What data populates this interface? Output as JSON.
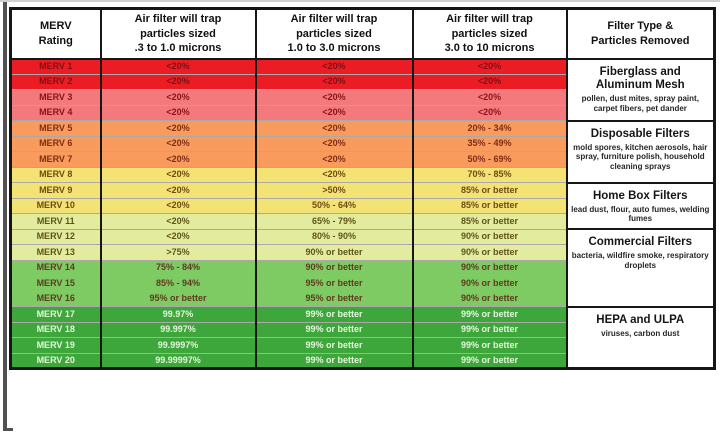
{
  "frame": {
    "background": "#ffffff",
    "top_line_color": "#d0d0d0",
    "left_line_color": "#515151",
    "table_border_color": "#161616"
  },
  "chart_data": {
    "type": "table",
    "columns": [
      "MERV\nRating",
      "Air filter will trap\nparticles sized\n.3 to 1.0 microns",
      "Air filter will trap\nparticles sized\n1.0 to 3.0 microns",
      "Air filter will trap\nparticles sized\n3.0 to 10 microns",
      "Filter Type &\nParticles Removed"
    ],
    "rows": [
      [
        "MERV 1",
        "<20%",
        "<20%",
        "<20%"
      ],
      [
        "MERV 2",
        "<20%",
        "<20%",
        "<20%"
      ],
      [
        "MERV 3",
        "<20%",
        "<20%",
        "<20%"
      ],
      [
        "MERV 4",
        "<20%",
        "<20%",
        "<20%"
      ],
      [
        "MERV 5",
        "<20%",
        "<20%",
        "20% - 34%"
      ],
      [
        "MERV 6",
        "<20%",
        "<20%",
        "35% - 49%"
      ],
      [
        "MERV 7",
        "<20%",
        "<20%",
        "50% - 69%"
      ],
      [
        "MERV 8",
        "<20%",
        "<20%",
        "70% - 85%"
      ],
      [
        "MERV 9",
        "<20%",
        ">50%",
        "85% or better"
      ],
      [
        "MERV 10",
        "<20%",
        "50% - 64%",
        "85% or better"
      ],
      [
        "MERV 11",
        "<20%",
        "65% - 79%",
        "85% or better"
      ],
      [
        "MERV 12",
        "<20%",
        "80% - 90%",
        "90% or better"
      ],
      [
        "MERV 13",
        ">75%",
        "90% or better",
        "90% or better"
      ],
      [
        "MERV 14",
        "75% - 84%",
        "90% or better",
        "90% or better"
      ],
      [
        "MERV 15",
        "85% - 94%",
        "95% or better",
        "90% or better"
      ],
      [
        "MERV 16",
        "95% or better",
        "95% or better",
        "90% or better"
      ],
      [
        "MERV 17",
        "99.97%",
        "99% or better",
        "99% or better"
      ],
      [
        "MERV 18",
        "99.997%",
        "99% or better",
        "99% or better"
      ],
      [
        "MERV 19",
        "99.9997%",
        "99% or better",
        "99% or better"
      ],
      [
        "MERV 20",
        "99.99997%",
        "99% or better",
        "99% or better"
      ]
    ],
    "row_bands": [
      "red",
      "red",
      "salmon",
      "salmon",
      "orange",
      "orange",
      "orange",
      "yellow",
      "yellow",
      "yellow",
      "lime",
      "lime",
      "lime",
      "green",
      "green",
      "green",
      "dgreen",
      "dgreen",
      "dgreen",
      "dgreen"
    ],
    "bands": {
      "red": {
        "bg": "#EC1C24",
        "fg": "#7D1116"
      },
      "salmon": {
        "bg": "#F4797D",
        "fg": "#871418"
      },
      "orange": {
        "bg": "#F89B5D",
        "fg": "#7F2D15"
      },
      "yellow": {
        "bg": "#F3E274",
        "fg": "#6F4B13"
      },
      "lime": {
        "bg": "#E3EB9E",
        "fg": "#5E5518"
      },
      "green": {
        "bg": "#7ECB63",
        "fg": "#5F3A20"
      },
      "dgreen": {
        "bg": "#3EA73C",
        "fg": "#E4F6DC"
      }
    },
    "groups": [
      {
        "row_start": 0,
        "span": 4,
        "title": "Fiberglass and\nAluminum Mesh",
        "desc": "pollen, dust mites, spray paint, carpet fibers, pet dander"
      },
      {
        "row_start": 4,
        "span": 4,
        "title": "Disposable Filters",
        "desc": "mold spores, kitchen aerosols, hair spray, furniture polish, household cleaning sprays"
      },
      {
        "row_start": 8,
        "span": 3,
        "title": "Home Box Filters",
        "desc": "lead dust, flour, auto fumes, welding fumes"
      },
      {
        "row_start": 11,
        "span": 5,
        "title": "Commercial Filters",
        "desc": "bacteria, wildfire smoke, respiratory droplets"
      },
      {
        "row_start": 16,
        "span": 4,
        "title": "HEPA and ULPA",
        "desc": "viruses, carbon dust"
      }
    ]
  }
}
